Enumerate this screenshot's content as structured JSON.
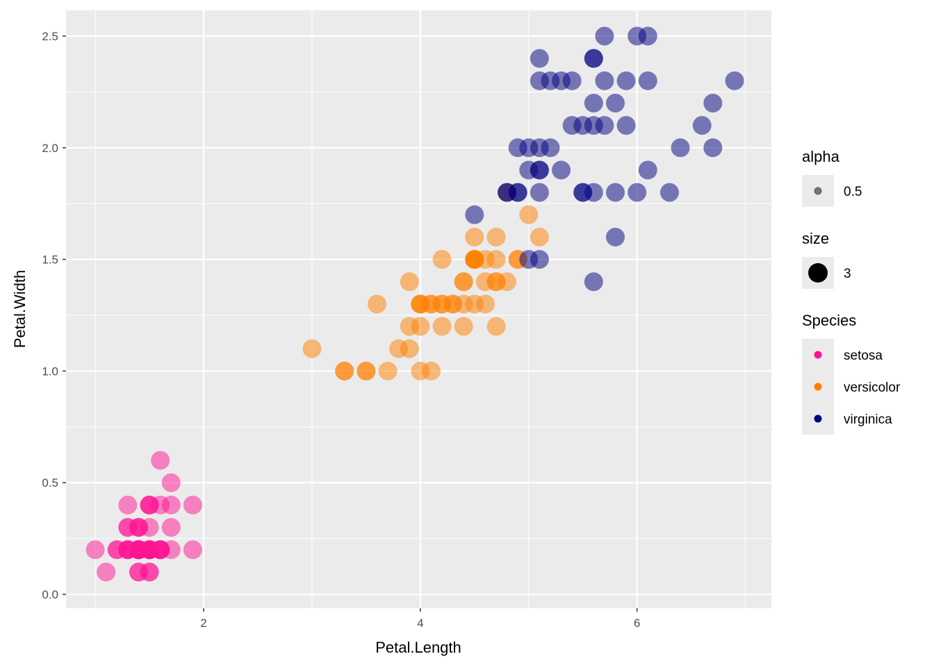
{
  "chart_data": {
    "type": "scatter",
    "xlabel": "Petal.Length",
    "ylabel": "Petal.Width",
    "xlim": [
      0.73,
      7.24
    ],
    "ylim": [
      -0.062,
      2.615
    ],
    "x_ticks": [
      2,
      4,
      6
    ],
    "x_tick_labels": [
      "2",
      "4",
      "6"
    ],
    "y_ticks": [
      0,
      0.5,
      1,
      1.5,
      2,
      2.5
    ],
    "y_tick_labels": [
      "0.0",
      "0.5",
      "1.0",
      "1.5",
      "2.0",
      "2.5"
    ],
    "grid": true,
    "point_alpha": 0.5,
    "legend_placement": "right",
    "legends": [
      {
        "title": "alpha",
        "entries": [
          {
            "label": "0.5"
          }
        ]
      },
      {
        "title": "size",
        "entries": [
          {
            "label": "3"
          }
        ]
      },
      {
        "title": "Species",
        "entries": [
          {
            "label": "setosa",
            "color": "#FF1493"
          },
          {
            "label": "versicolor",
            "color": "#FF7F00"
          },
          {
            "label": "virginica",
            "color": "#000080"
          }
        ]
      }
    ],
    "series": [
      {
        "name": "setosa",
        "color": "#FF1493",
        "points": [
          [
            1.4,
            0.2
          ],
          [
            1.4,
            0.2
          ],
          [
            1.3,
            0.2
          ],
          [
            1.5,
            0.2
          ],
          [
            1.4,
            0.2
          ],
          [
            1.7,
            0.4
          ],
          [
            1.4,
            0.3
          ],
          [
            1.5,
            0.2
          ],
          [
            1.4,
            0.2
          ],
          [
            1.5,
            0.1
          ],
          [
            1.5,
            0.2
          ],
          [
            1.6,
            0.2
          ],
          [
            1.4,
            0.1
          ],
          [
            1.1,
            0.1
          ],
          [
            1.2,
            0.2
          ],
          [
            1.5,
            0.4
          ],
          [
            1.3,
            0.4
          ],
          [
            1.4,
            0.3
          ],
          [
            1.7,
            0.3
          ],
          [
            1.5,
            0.3
          ],
          [
            1.7,
            0.2
          ],
          [
            1.5,
            0.4
          ],
          [
            1.0,
            0.2
          ],
          [
            1.7,
            0.5
          ],
          [
            1.9,
            0.2
          ],
          [
            1.6,
            0.2
          ],
          [
            1.6,
            0.4
          ],
          [
            1.5,
            0.2
          ],
          [
            1.4,
            0.2
          ],
          [
            1.6,
            0.2
          ],
          [
            1.6,
            0.2
          ],
          [
            1.5,
            0.4
          ],
          [
            1.5,
            0.1
          ],
          [
            1.4,
            0.2
          ],
          [
            1.5,
            0.2
          ],
          [
            1.2,
            0.2
          ],
          [
            1.3,
            0.2
          ],
          [
            1.4,
            0.1
          ],
          [
            1.3,
            0.2
          ],
          [
            1.5,
            0.2
          ],
          [
            1.3,
            0.3
          ],
          [
            1.3,
            0.3
          ],
          [
            1.3,
            0.2
          ],
          [
            1.6,
            0.6
          ],
          [
            1.9,
            0.4
          ],
          [
            1.4,
            0.3
          ],
          [
            1.6,
            0.2
          ],
          [
            1.4,
            0.2
          ],
          [
            1.5,
            0.2
          ],
          [
            1.4,
            0.2
          ]
        ]
      },
      {
        "name": "versicolor",
        "color": "#FF7F00",
        "points": [
          [
            4.7,
            1.4
          ],
          [
            4.5,
            1.5
          ],
          [
            4.9,
            1.5
          ],
          [
            4.0,
            1.3
          ],
          [
            4.6,
            1.5
          ],
          [
            4.5,
            1.3
          ],
          [
            4.7,
            1.6
          ],
          [
            3.3,
            1.0
          ],
          [
            4.6,
            1.3
          ],
          [
            3.9,
            1.4
          ],
          [
            3.5,
            1.0
          ],
          [
            4.2,
            1.5
          ],
          [
            4.0,
            1.0
          ],
          [
            4.7,
            1.4
          ],
          [
            3.6,
            1.3
          ],
          [
            4.4,
            1.4
          ],
          [
            4.5,
            1.5
          ],
          [
            4.1,
            1.0
          ],
          [
            4.5,
            1.5
          ],
          [
            3.9,
            1.1
          ],
          [
            4.8,
            1.8
          ],
          [
            4.0,
            1.3
          ],
          [
            4.9,
            1.5
          ],
          [
            4.7,
            1.2
          ],
          [
            4.3,
            1.3
          ],
          [
            4.4,
            1.4
          ],
          [
            4.8,
            1.4
          ],
          [
            5.0,
            1.7
          ],
          [
            4.5,
            1.5
          ],
          [
            3.5,
            1.0
          ],
          [
            3.8,
            1.1
          ],
          [
            3.7,
            1.0
          ],
          [
            3.9,
            1.2
          ],
          [
            5.1,
            1.6
          ],
          [
            4.5,
            1.5
          ],
          [
            4.5,
            1.6
          ],
          [
            4.7,
            1.5
          ],
          [
            4.4,
            1.3
          ],
          [
            4.1,
            1.3
          ],
          [
            4.0,
            1.3
          ],
          [
            4.4,
            1.2
          ],
          [
            4.6,
            1.4
          ],
          [
            4.0,
            1.2
          ],
          [
            3.3,
            1.0
          ],
          [
            4.2,
            1.3
          ],
          [
            4.2,
            1.2
          ],
          [
            4.2,
            1.3
          ],
          [
            4.3,
            1.3
          ],
          [
            3.0,
            1.1
          ],
          [
            4.1,
            1.3
          ]
        ]
      },
      {
        "name": "virginica",
        "color": "#000080",
        "points": [
          [
            6.0,
            2.5
          ],
          [
            5.1,
            1.9
          ],
          [
            5.9,
            2.1
          ],
          [
            5.6,
            1.8
          ],
          [
            5.8,
            2.2
          ],
          [
            6.6,
            2.1
          ],
          [
            4.5,
            1.7
          ],
          [
            6.3,
            1.8
          ],
          [
            5.8,
            1.8
          ],
          [
            6.1,
            2.5
          ],
          [
            5.1,
            2.0
          ],
          [
            5.3,
            1.9
          ],
          [
            5.5,
            2.1
          ],
          [
            5.0,
            2.0
          ],
          [
            5.1,
            2.4
          ],
          [
            5.3,
            2.3
          ],
          [
            5.5,
            1.8
          ],
          [
            6.7,
            2.2
          ],
          [
            6.9,
            2.3
          ],
          [
            5.0,
            1.5
          ],
          [
            5.7,
            2.3
          ],
          [
            4.9,
            2.0
          ],
          [
            6.7,
            2.0
          ],
          [
            4.9,
            1.8
          ],
          [
            5.7,
            2.1
          ],
          [
            6.0,
            1.8
          ],
          [
            4.8,
            1.8
          ],
          [
            4.9,
            1.8
          ],
          [
            5.6,
            2.1
          ],
          [
            5.8,
            1.6
          ],
          [
            6.1,
            1.9
          ],
          [
            6.4,
            2.0
          ],
          [
            5.6,
            2.2
          ],
          [
            5.1,
            1.5
          ],
          [
            5.6,
            1.4
          ],
          [
            6.1,
            2.3
          ],
          [
            5.6,
            2.4
          ],
          [
            5.5,
            1.8
          ],
          [
            4.8,
            1.8
          ],
          [
            5.4,
            2.1
          ],
          [
            5.6,
            2.4
          ],
          [
            5.1,
            2.3
          ],
          [
            5.1,
            1.9
          ],
          [
            5.9,
            2.3
          ],
          [
            5.7,
            2.5
          ],
          [
            5.2,
            2.3
          ],
          [
            5.0,
            1.9
          ],
          [
            5.2,
            2.0
          ],
          [
            5.4,
            2.3
          ],
          [
            5.1,
            1.8
          ]
        ]
      }
    ]
  }
}
